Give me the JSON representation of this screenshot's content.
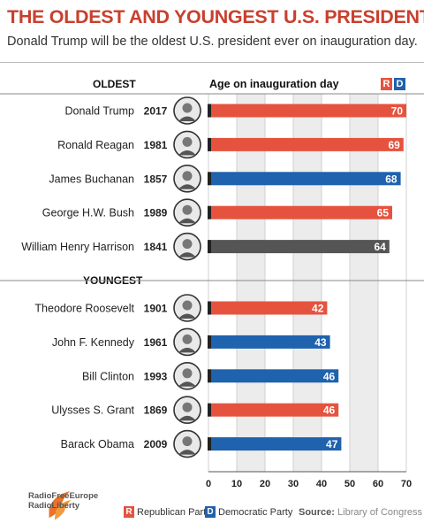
{
  "title": "THE OLDEST AND YOUNGEST U.S. PRESIDENTS",
  "subtitle": "Donald Trump will be the oldest U.S. president ever on inauguration day.",
  "sections": {
    "oldest": "OLDEST",
    "youngest": "YOUNGEST"
  },
  "axis_title": "Age on inauguration day",
  "party_key": {
    "r": "R",
    "d": "D"
  },
  "legend": {
    "republican": "Republican Party",
    "democratic": "Democratic Party"
  },
  "source": {
    "label": "Source:",
    "text": "Library of Congress"
  },
  "logo": {
    "line1": "RadioFreeEurope",
    "line2": "RadioLiberty"
  },
  "colors": {
    "republican": "#e5533f",
    "democratic": "#1f62ad",
    "whig": "#555555",
    "title": "#c8402e"
  },
  "chart_data": {
    "type": "bar",
    "orientation": "horizontal",
    "xlim": [
      0,
      70
    ],
    "xticks": [
      0,
      10,
      20,
      30,
      40,
      50,
      60,
      70
    ],
    "xlabel": "Age on inauguration day",
    "grid": true,
    "groups": [
      {
        "label": "OLDEST",
        "rows": [
          {
            "name": "Donald Trump",
            "year": "2017",
            "value": 70,
            "party": "R",
            "label": "70"
          },
          {
            "name": "Ronald Reagan",
            "year": "1981",
            "value": 69,
            "party": "R",
            "label": "69"
          },
          {
            "name": "James Buchanan",
            "year": "1857",
            "value": 68,
            "party": "D",
            "label": "68"
          },
          {
            "name": "George H.W. Bush",
            "year": "1989",
            "value": 65,
            "party": "R",
            "label": "65"
          },
          {
            "name": "William Henry Harrison",
            "year": "1841",
            "value": 64,
            "party": "W",
            "label": "64"
          }
        ]
      },
      {
        "label": "YOUNGEST",
        "rows": [
          {
            "name": "Theodore Roosevelt",
            "year": "1901",
            "value": 42,
            "party": "R",
            "label": "42"
          },
          {
            "name": "John F. Kennedy",
            "year": "1961",
            "value": 43,
            "party": "D",
            "label": "43"
          },
          {
            "name": "Bill Clinton",
            "year": "1993",
            "value": 46,
            "party": "D",
            "label": "46"
          },
          {
            "name": "Ulysses S. Grant",
            "year": "1869",
            "value": 46,
            "party": "R",
            "label": "46"
          },
          {
            "name": "Barack Obama",
            "year": "2009",
            "value": 47,
            "party": "D",
            "label": "47"
          }
        ]
      }
    ]
  }
}
